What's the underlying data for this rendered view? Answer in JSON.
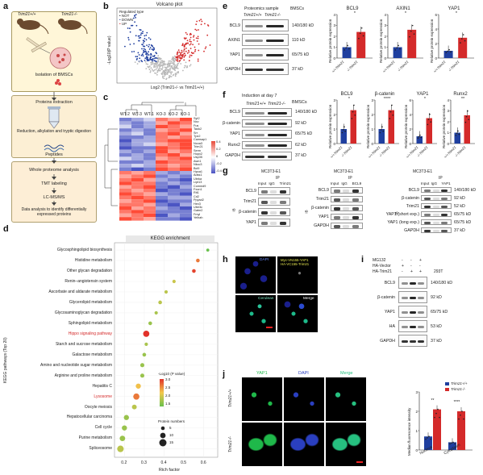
{
  "panel_labels": {
    "a": "a",
    "b": "b",
    "c": "c",
    "d": "d",
    "e": "e",
    "f": "f",
    "g": "g",
    "h": "h",
    "i": "i",
    "j": "j"
  },
  "workflow": {
    "mouse_left": "Trim21+/+",
    "mouse_right": "Trim21-/-",
    "isolation": "Isolation of BMSCs",
    "protein_extraction": "Proteins extraction",
    "reduction": "Reduction, alkylation and tryptic digestion",
    "peptides": "Peptides",
    "whole_proteome": "Whole proteome analysis",
    "tmt": "TMT labeling",
    "lcms": "LC-MS/MS",
    "data_analysis": "Data analysis to identify differentially expressed proteins"
  },
  "volcano": {
    "title": "Volcano plot",
    "ylabel": "-Log10(P value)",
    "xlabel": "Log2 (Trim21-/- vs Trim21+/+)",
    "legend_title": "Regulated type",
    "legend": [
      "NOT",
      "DOWN",
      "UP"
    ],
    "colors": {
      "not": "#b8b8b8",
      "down": "#1f3f9f",
      "up": "#d42a2a"
    }
  },
  "heatmap": {
    "columns": [
      "WT-2",
      "WT-3",
      "WT-1",
      "KO-3",
      "KO-2",
      "KO-1"
    ],
    "genes": [
      "Syt2",
      "Ncv",
      "Fus",
      "Taok2",
      "Srr",
      "Tpx2",
      "Camsap1",
      "Ncoa3",
      "Trim21",
      "Serm",
      "Hopx2",
      "Usp35",
      "Awn1",
      "Nkcc3",
      "Bcl9",
      "Hpca1",
      "Adss1",
      "Ubrka",
      "Lipt13",
      "Commd9",
      "Fxon1",
      "Rit1",
      "Cd2",
      "Ppyad2",
      "Hex3",
      "Ube3c",
      "Gatm2",
      "Fmyl",
      "Yeihah"
    ],
    "scale": [
      "0.4",
      "0.2",
      "0",
      "-0.2",
      "-0.4"
    ],
    "values": [
      [
        -0.3,
        -0.2,
        -0.1,
        0.3,
        0.2,
        0.4
      ],
      [
        -0.2,
        -0.3,
        -0.2,
        0.2,
        0.4,
        0.3
      ],
      [
        -0.1,
        -0.3,
        -0.2,
        0.4,
        0.3,
        0.2
      ],
      [
        -0.3,
        -0.2,
        -0.3,
        0.2,
        0.3,
        0.4
      ],
      [
        -0.2,
        -0.1,
        -0.3,
        0.3,
        0.4,
        0.2
      ],
      [
        -0.3,
        -0.3,
        -0.2,
        0.3,
        0.2,
        0.3
      ],
      [
        -0.4,
        -0.2,
        -0.2,
        0.3,
        0.4,
        0.4
      ],
      [
        -0.3,
        -0.2,
        -0.1,
        0.2,
        0.3,
        0.4
      ],
      [
        -0.4,
        -0.3,
        -0.3,
        0.4,
        0.3,
        0.4
      ],
      [
        -0.2,
        -0.3,
        -0.2,
        0.4,
        0.2,
        0.3
      ],
      [
        -0.3,
        -0.2,
        -0.3,
        0.3,
        0.4,
        0.2
      ],
      [
        -0.1,
        -0.2,
        -0.3,
        0.2,
        0.3,
        0.4
      ],
      [
        -0.3,
        -0.3,
        -0.2,
        0.4,
        0.3,
        0.3
      ],
      [
        -0.2,
        -0.1,
        -0.2,
        0.3,
        0.2,
        0.3
      ],
      [
        -0.3,
        -0.4,
        -0.3,
        0.4,
        0.3,
        0.4
      ],
      [
        0.3,
        0.2,
        0.3,
        -0.2,
        -0.3,
        -0.2
      ],
      [
        0.2,
        0.3,
        0.4,
        -0.3,
        -0.2,
        -0.3
      ],
      [
        0.3,
        0.4,
        0.2,
        -0.2,
        -0.3,
        -0.4
      ],
      [
        0.4,
        0.3,
        0.3,
        -0.3,
        -0.2,
        -0.3
      ],
      [
        0.2,
        0.3,
        0.4,
        -0.3,
        -0.4,
        -0.2
      ],
      [
        0.3,
        0.2,
        0.3,
        -0.4,
        -0.3,
        -0.3
      ],
      [
        0.4,
        0.3,
        0.2,
        -0.2,
        -0.3,
        -0.4
      ],
      [
        0.3,
        0.4,
        0.3,
        -0.3,
        -0.2,
        -0.2
      ],
      [
        0.2,
        0.3,
        0.4,
        -0.4,
        -0.3,
        -0.3
      ],
      [
        0.3,
        0.3,
        0.2,
        -0.3,
        -0.4,
        -0.2
      ],
      [
        0.4,
        0.2,
        0.3,
        -0.2,
        -0.3,
        -0.4
      ],
      [
        0.3,
        0.4,
        0.3,
        -0.3,
        -0.3,
        -0.3
      ],
      [
        0.2,
        0.3,
        0.4,
        -0.4,
        -0.2,
        -0.3
      ],
      [
        0.4,
        0.3,
        0.2,
        -0.3,
        -0.3,
        -0.4
      ]
    ]
  },
  "kegg": {
    "title": "KEGG enrichment",
    "ylabel": "KEGG pathways (Top 20)",
    "xlabel": "Rich factor",
    "legend_color_title": "-Log10 (P value)",
    "legend_size_title": "Protein numbers",
    "color_ticks": [
      "3.0",
      "2.5",
      "2.0",
      "1.5"
    ],
    "size_ticks": [
      "5",
      "10",
      "15"
    ],
    "highlight_color": "#d42a2a",
    "x_ticks": [
      "0.2",
      "0.3",
      "0.4",
      "0.5",
      "0.6"
    ],
    "pathways": [
      {
        "name": "Glycosphingolipid biosynthesis",
        "rich": 0.62,
        "p": 1.3,
        "n": 3,
        "hl": false
      },
      {
        "name": "Histidine metabolism",
        "rich": 0.57,
        "p": 2.6,
        "n": 5,
        "hl": false
      },
      {
        "name": "Other glycan degradation",
        "rich": 0.55,
        "p": 2.9,
        "n": 5,
        "hl": false
      },
      {
        "name": "Renin–angiotensin system",
        "rich": 0.45,
        "p": 1.9,
        "n": 4,
        "hl": false
      },
      {
        "name": "Ascorbate and aldarate metabolism",
        "rich": 0.41,
        "p": 1.8,
        "n": 4,
        "hl": false
      },
      {
        "name": "Glycerolipid metabolism",
        "rich": 0.38,
        "p": 1.8,
        "n": 5,
        "hl": false
      },
      {
        "name": "Glycosaminoglycan degradation",
        "rich": 0.36,
        "p": 1.7,
        "n": 4,
        "hl": false
      },
      {
        "name": "Sphingolipid metabolism",
        "rich": 0.33,
        "p": 1.6,
        "n": 5,
        "hl": false
      },
      {
        "name": "Hippo signaling pathway",
        "rich": 0.31,
        "p": 3.0,
        "n": 12,
        "hl": true
      },
      {
        "name": "Starch and sucrose metabolism",
        "rich": 0.31,
        "p": 1.7,
        "n": 4,
        "hl": false
      },
      {
        "name": "Galactose metabolism",
        "rich": 0.3,
        "p": 1.6,
        "n": 5,
        "hl": false
      },
      {
        "name": "Amino and nucleotide sugar metabolism",
        "rich": 0.29,
        "p": 1.6,
        "n": 6,
        "hl": false
      },
      {
        "name": "Arginine and proline metabolism",
        "rich": 0.29,
        "p": 1.6,
        "n": 6,
        "hl": false
      },
      {
        "name": "Hepatitis C",
        "rich": 0.27,
        "p": 2.2,
        "n": 9,
        "hl": false
      },
      {
        "name": "Lysosome",
        "rich": 0.26,
        "p": 2.6,
        "n": 12,
        "hl": true
      },
      {
        "name": "Oocyte meiosis",
        "rich": 0.25,
        "p": 1.8,
        "n": 8,
        "hl": false
      },
      {
        "name": "Hepatocellular carcinoma",
        "rich": 0.21,
        "p": 1.6,
        "n": 9,
        "hl": false
      },
      {
        "name": "Cell cycle",
        "rich": 0.2,
        "p": 1.6,
        "n": 9,
        "hl": false
      },
      {
        "name": "Purine metabolism",
        "rich": 0.19,
        "p": 1.6,
        "n": 10,
        "hl": false
      },
      {
        "name": "Spliceosome",
        "rich": 0.18,
        "p": 1.8,
        "n": 13,
        "hl": false
      }
    ]
  },
  "blot_e": {
    "header": "Proteomics sample",
    "cell": "BMSCs",
    "cols": [
      "Trim21+/+",
      "Trim21-/-"
    ],
    "rows": [
      "BCL9",
      "AXIN1",
      "YAP1",
      "GAPDH"
    ],
    "kd": [
      "140/180 kD",
      "110 kD",
      "65/75 kD",
      "37 kD"
    ]
  },
  "blot_f": {
    "header": "Induction at day 7",
    "cell": "BMSCs",
    "cols": [
      "Trim21+/+",
      "Trim21-/-"
    ],
    "rows": [
      "BCL9",
      "β-catenin",
      "YAP1",
      "Runx2",
      "GAPDH"
    ],
    "kd": [
      "140/180 kD",
      "92 kD",
      "65/75 kD",
      "62 kD",
      "37 kD"
    ]
  },
  "bars_e": {
    "ylabel": "Relative protein expression",
    "xcats": [
      "Trim21+/+",
      "Trim21-/-"
    ],
    "colors": {
      "wt": "#1f3f9f",
      "ko": "#d42a2a"
    },
    "charts": [
      {
        "title": "BCL9",
        "values": [
          1.0,
          2.4
        ],
        "ymax": 4,
        "ticks": [
          "0",
          "1",
          "2",
          "3",
          "4"
        ],
        "sig": "*"
      },
      {
        "title": "AXIN1",
        "values": [
          1.0,
          2.6
        ],
        "ymax": 4,
        "ticks": [
          "0",
          "1",
          "2",
          "3",
          "4"
        ],
        "sig": "*"
      },
      {
        "title": "YAP1",
        "values": [
          1.0,
          2.8
        ],
        "ymax": 6,
        "ticks": [
          "0",
          "2",
          "4",
          "6"
        ],
        "sig": "*"
      }
    ]
  },
  "bars_f": {
    "ylabel": "Relative protein expression",
    "xcats": [
      "Trim21+/+",
      "Trim21-/-"
    ],
    "charts": [
      {
        "title": "BCL9",
        "values": [
          1.0,
          2.3
        ],
        "ymax": 3,
        "ticks": [
          "0",
          "1",
          "2",
          "3"
        ],
        "sig": "*"
      },
      {
        "title": "β-catenin",
        "values": [
          1.0,
          2.3
        ],
        "ymax": 3,
        "ticks": [
          "0",
          "1",
          "2",
          "3"
        ],
        "sig": "****"
      },
      {
        "title": "YAP1",
        "values": [
          1.0,
          3.5
        ],
        "ymax": 6,
        "ticks": [
          "0",
          "2",
          "4",
          "6"
        ],
        "sig": "*"
      },
      {
        "title": "Runx2",
        "values": [
          1.0,
          2.6
        ],
        "ymax": 4,
        "ticks": [
          "0",
          "1",
          "2",
          "3",
          "4"
        ],
        "sig": "**"
      }
    ]
  },
  "blot_g": {
    "cell": "MC3T3-E1",
    "g1": {
      "ip": "IP",
      "cols": [
        "Input",
        "IgG",
        "Trim21"
      ],
      "rows": [
        "BCL9",
        "Trim21",
        "β-catenin",
        "YAP1"
      ]
    },
    "g2": {
      "ip": "IP",
      "cols": [
        "Input",
        "IgG",
        "BCL9"
      ],
      "rows": [
        "BCL9",
        "Trim21",
        "β-catenin",
        "YAP1",
        "GAPDH"
      ]
    },
    "g3": {
      "ip": "IP",
      "cols": [
        "Input",
        "IgG",
        "YAP1"
      ],
      "rows": [
        "BCL9",
        "β-catenin",
        "Trim21",
        "YAP1 (short exp.)",
        "YAP1 (long exp.)",
        "GAPDH"
      ],
      "kd": [
        "140/180 kD",
        "92 kD",
        "52 kD",
        "65/75 kD",
        "65/75 kD",
        "37 kD"
      ]
    },
    "ib": "IB"
  },
  "micro_h": {
    "labels": [
      "DAPI",
      "Myc-VN155-YAP1\nHA-VC155-Trim21",
      "Cerulean",
      "Merge"
    ]
  },
  "blot_i": {
    "cell": "293T",
    "conds": [
      "MG132",
      "HA-Vector",
      "HA-Trim21"
    ],
    "signs": [
      [
        "-",
        "-",
        "+"
      ],
      [
        "+",
        "-",
        "-"
      ],
      [
        "-",
        "+",
        "+"
      ]
    ],
    "rows": [
      "BCL9",
      "β-catenin",
      "YAP1",
      "HA",
      "GAPDH"
    ],
    "kd": [
      "140/180 kD",
      "92 kD",
      "65/75 kD",
      "53 kD",
      "37 kD"
    ]
  },
  "micro_j": {
    "cols": [
      "YAP1",
      "DAPI",
      "Merge"
    ],
    "rows": [
      "Trim21+/+",
      "Trim21-/-"
    ]
  },
  "bars_j": {
    "ylabel": "Median fluorescence intensity",
    "legend": [
      "Trim21+/+",
      "Trim21-/-"
    ],
    "cats": [
      "Nucleus",
      "Cytoplasm"
    ],
    "wt": [
      0.7,
      0.4
    ],
    "ko": [
      2.1,
      2.0
    ],
    "sig": [
      "**",
      "****"
    ],
    "ymax": 3,
    "ticks": [
      "0",
      "1",
      "2",
      "3"
    ]
  }
}
